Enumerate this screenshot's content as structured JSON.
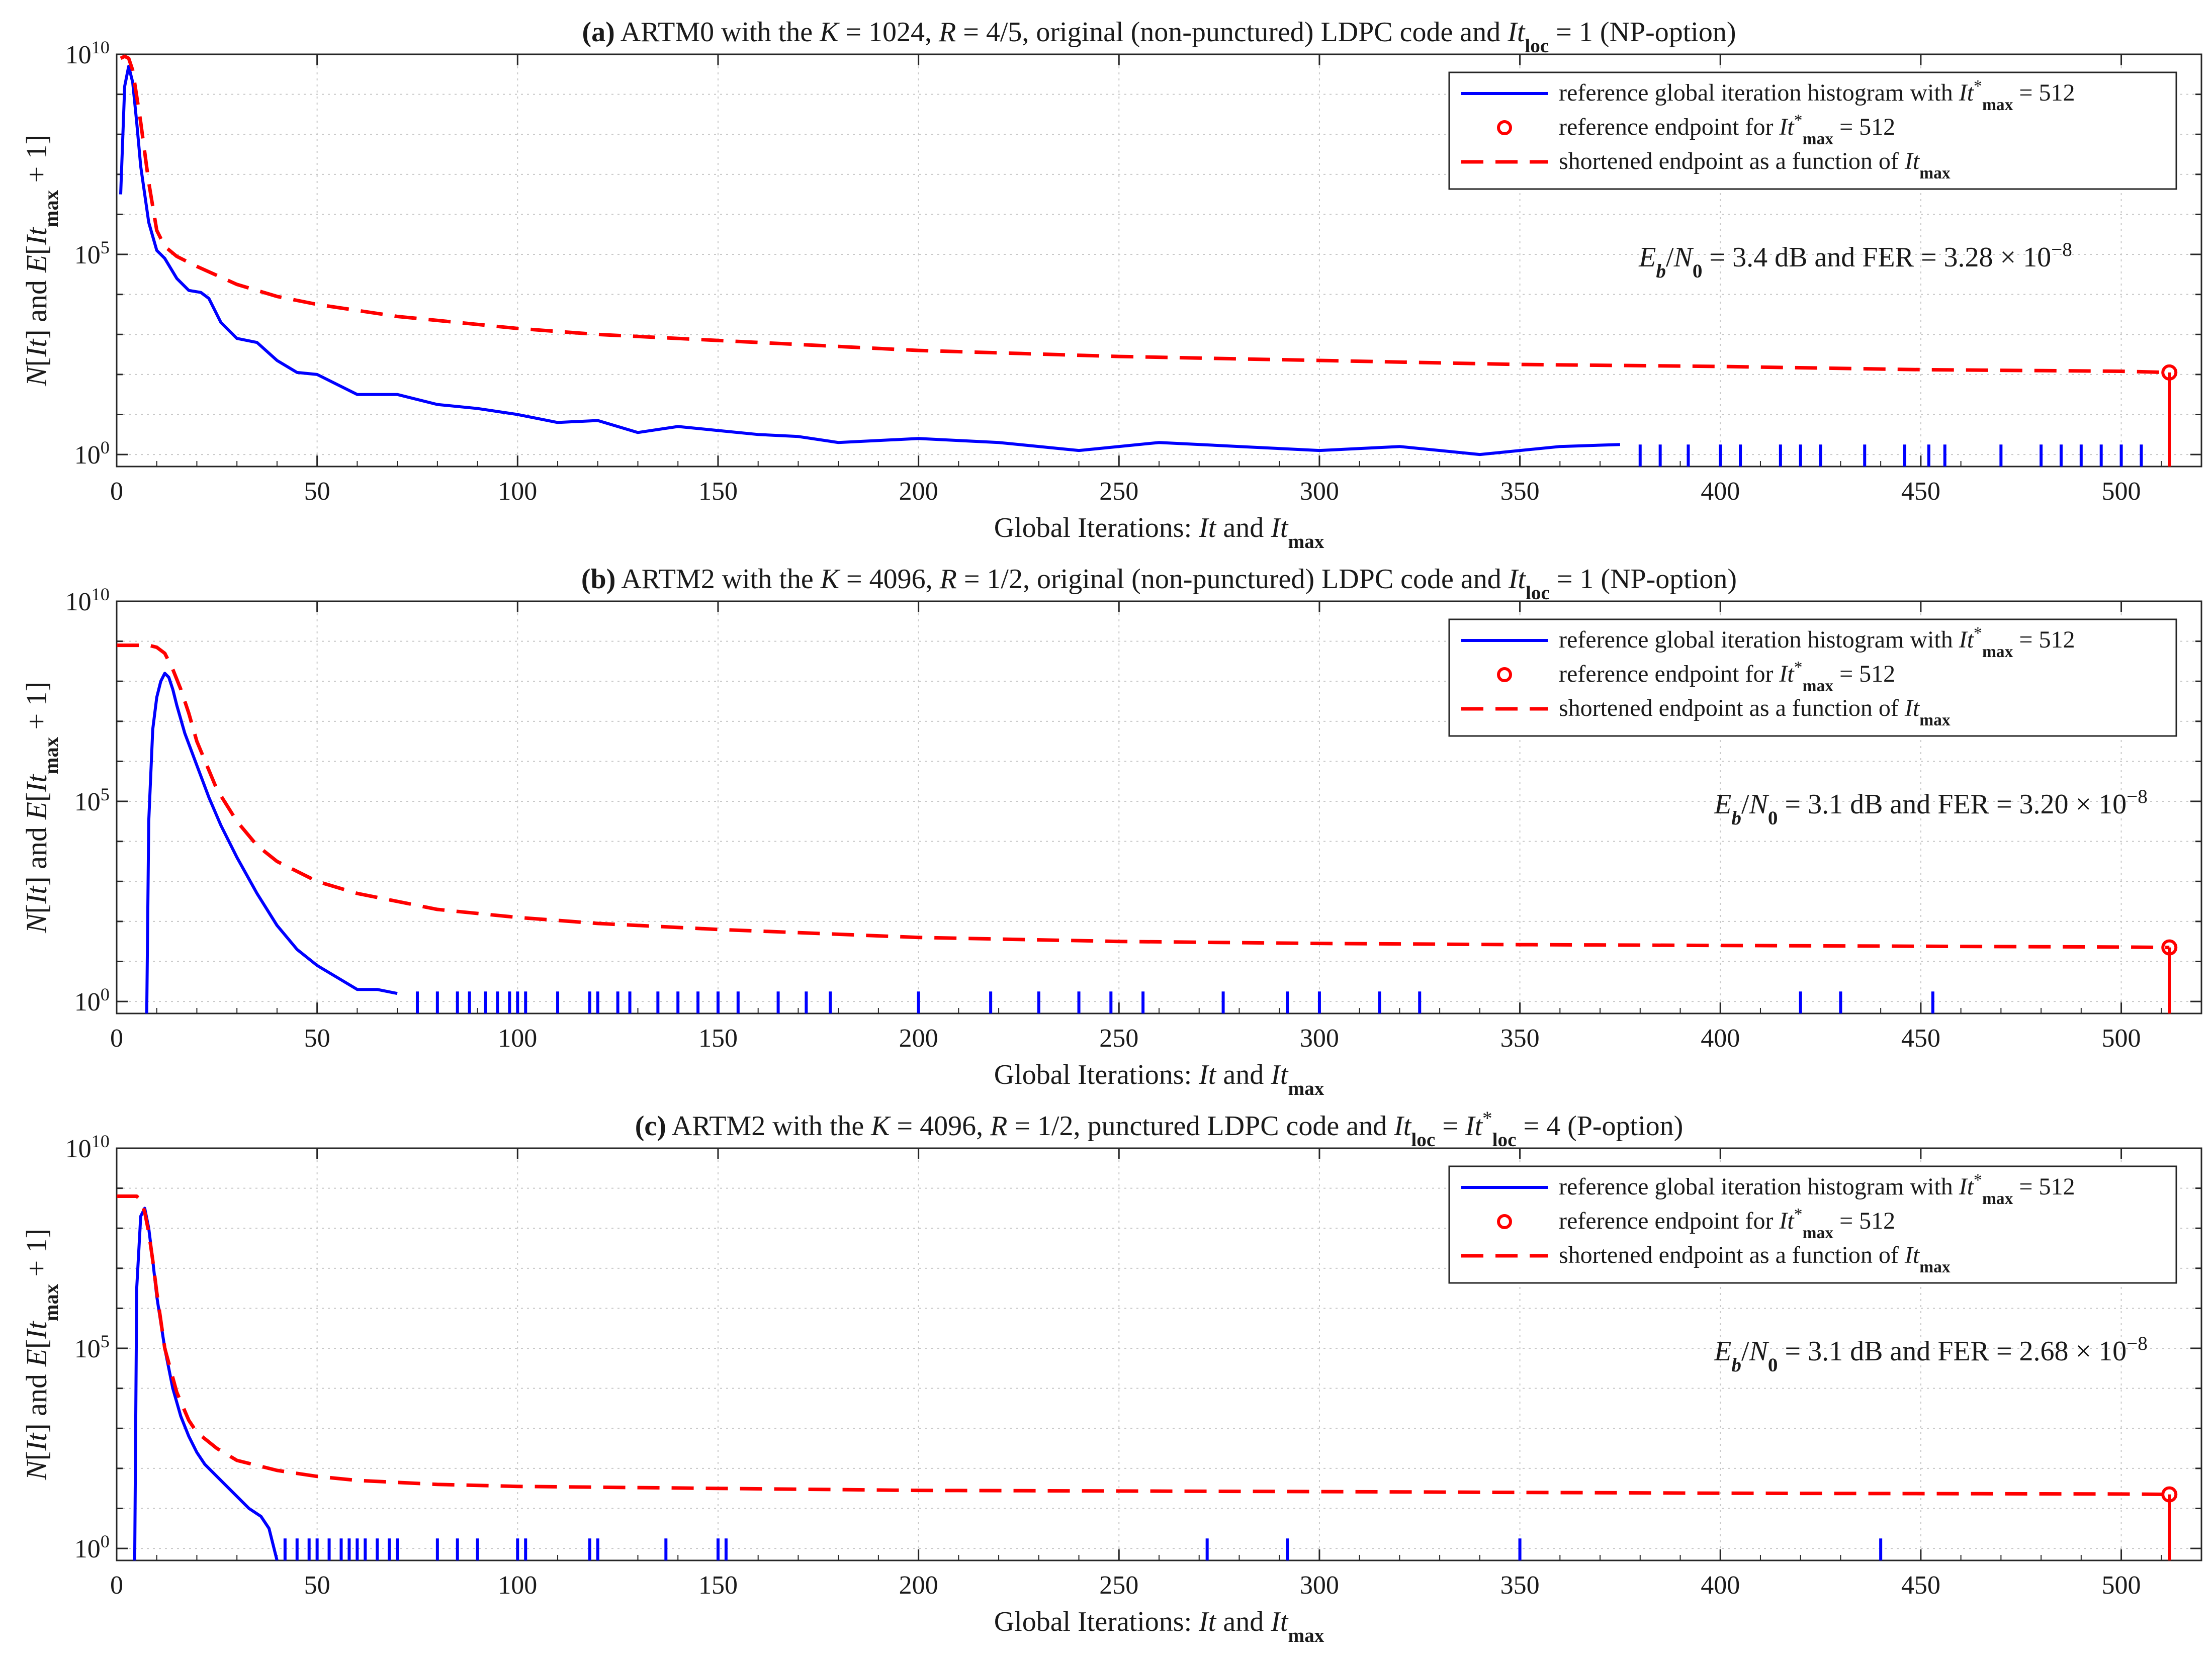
{
  "chart_data": [
    {
      "type": "line",
      "title": "(a) ARTM0 with the K = 1024, R = 4/5, original (non-punctured) LDPC code and Itloc = 1 (NP-option)",
      "xlabel": "Global Iterations: It and Itmax",
      "ylabel": "N[It] and E[Itmax + 1]",
      "xlim": [
        0,
        520
      ],
      "ylim_log10": [
        -0.3,
        10
      ],
      "yscale": "log",
      "x_ticks": [
        "0",
        "50",
        "100",
        "150",
        "200",
        "250",
        "300",
        "350",
        "400",
        "450",
        "500"
      ],
      "y_ticks": [
        "10^0",
        "10^5",
        "10^10"
      ],
      "grid": true,
      "legend_position": "top-right",
      "legend": [
        "reference global iteration histogram with It*max = 512",
        "reference endpoint for It*max = 512",
        "shortened endpoint as a function of Itmax"
      ],
      "annotation": "Eb/N0 = 3.4 dB and FER = 3.28 × 10^-8",
      "series": [
        {
          "name": "reference global iteration histogram with It*max = 512",
          "color": "#0000ff",
          "style": "solid",
          "log10_values": {
            "x": [
              1,
              2,
              3,
              4,
              5,
              6,
              8,
              10,
              12,
              15,
              18,
              21,
              23,
              26,
              30,
              35,
              40,
              45,
              50,
              55,
              60,
              70,
              80,
              90,
              100,
              110,
              120,
              130,
              140,
              150,
              160,
              170,
              180,
              200,
              220,
              240,
              260,
              280,
              300,
              320,
              340,
              360,
              375
            ],
            "y": [
              6.5,
              9.2,
              9.7,
              9.3,
              8.3,
              7.2,
              5.8,
              5.1,
              4.9,
              4.4,
              4.1,
              4.05,
              3.9,
              3.3,
              2.9,
              2.8,
              2.35,
              2.05,
              2.0,
              1.75,
              1.5,
              1.5,
              1.25,
              1.15,
              1.0,
              0.8,
              0.85,
              0.55,
              0.7,
              0.6,
              0.5,
              0.45,
              0.3,
              0.4,
              0.3,
              0.1,
              0.3,
              0.2,
              0.1,
              0.2,
              0.0,
              0.2,
              0.25
            ]
          },
          "sparse_spikes_x": [
            380,
            385,
            392,
            400,
            405,
            415,
            420,
            425,
            436,
            446,
            452,
            456,
            470,
            480,
            485,
            490,
            495,
            500,
            505
          ]
        },
        {
          "name": "reference endpoint for It*max = 512",
          "color": "#ff0000",
          "style": "marker",
          "x": 512,
          "log10_value": 2.05
        },
        {
          "name": "shortened endpoint as a function of Itmax",
          "color": "#ff0000",
          "style": "dashed",
          "log10_values": {
            "x": [
              1,
              2,
              3,
              4,
              6,
              8,
              10,
              12,
              15,
              20,
              30,
              40,
              50,
              60,
              70,
              80,
              100,
              120,
              150,
              200,
              250,
              300,
              350,
              400,
              450,
              500,
              512
            ],
            "y": [
              9.9,
              9.95,
              9.9,
              9.6,
              8.3,
              6.8,
              5.6,
              5.2,
              4.95,
              4.7,
              4.25,
              3.95,
              3.75,
              3.6,
              3.45,
              3.35,
              3.15,
              3.0,
              2.85,
              2.6,
              2.45,
              2.35,
              2.25,
              2.2,
              2.12,
              2.08,
              2.05
            ]
          }
        }
      ]
    },
    {
      "type": "line",
      "title": "(b) ARTM2 with the K = 4096, R = 1/2, original (non-punctured) LDPC code and Itloc = 1 (NP-option)",
      "xlabel": "Global Iterations: It and Itmax",
      "ylabel": "N[It] and E[Itmax + 1]",
      "xlim": [
        0,
        520
      ],
      "ylim_log10": [
        -0.3,
        10
      ],
      "yscale": "log",
      "x_ticks": [
        "0",
        "50",
        "100",
        "150",
        "200",
        "250",
        "300",
        "350",
        "400",
        "450",
        "500"
      ],
      "y_ticks": [
        "10^0",
        "10^5",
        "10^10"
      ],
      "grid": true,
      "legend_position": "top-right",
      "legend": [
        "reference global iteration histogram with It*max = 512",
        "reference endpoint for It*max = 512",
        "shortened endpoint as a function of Itmax"
      ],
      "annotation": "Eb/N0 = 3.1 dB and FER = 3.20 × 10^-8",
      "series": [
        {
          "name": "reference global iteration histogram with It*max = 512",
          "color": "#0000ff",
          "style": "solid",
          "log10_values": {
            "x": [
              7.5,
              8,
              9,
              10,
              11,
              12,
              13,
              14,
              15,
              17,
              20,
              23,
              26,
              30,
              35,
              40,
              45,
              50,
              55,
              60,
              65,
              70
            ],
            "y": [
              -0.3,
              4.5,
              6.8,
              7.6,
              8.0,
              8.2,
              8.1,
              7.8,
              7.4,
              6.7,
              5.9,
              5.1,
              4.4,
              3.6,
              2.7,
              1.9,
              1.3,
              0.9,
              0.6,
              0.3,
              0.3,
              0.2
            ]
          },
          "sparse_spikes_x": [
            75,
            80,
            85,
            88,
            92,
            95,
            98,
            100,
            102,
            110,
            118,
            120,
            125,
            128,
            135,
            140,
            145,
            150,
            155,
            165,
            172,
            178,
            200,
            218,
            230,
            240,
            248,
            256,
            276,
            292,
            300,
            315,
            325,
            420,
            430,
            453
          ]
        },
        {
          "name": "reference endpoint for It*max = 512",
          "color": "#ff0000",
          "style": "marker",
          "x": 512,
          "log10_value": 1.35
        },
        {
          "name": "shortened endpoint as a function of Itmax",
          "color": "#ff0000",
          "style": "dashed",
          "log10_values": {
            "x": [
              0,
              5,
              8,
              10,
              12,
              14,
              16,
              18,
              20,
              25,
              30,
              35,
              40,
              50,
              60,
              70,
              80,
              100,
              120,
              150,
              200,
              250,
              300,
              350,
              400,
              450,
              500,
              512
            ],
            "y": [
              8.9,
              8.9,
              8.9,
              8.85,
              8.7,
              8.3,
              7.8,
              7.2,
              6.5,
              5.3,
              4.5,
              3.9,
              3.5,
              3.0,
              2.7,
              2.5,
              2.3,
              2.1,
              1.95,
              1.8,
              1.6,
              1.5,
              1.45,
              1.42,
              1.4,
              1.38,
              1.36,
              1.35
            ]
          }
        }
      ]
    },
    {
      "type": "line",
      "title": "(c) ARTM2 with the K = 4096, R = 1/2, punctured LDPC code and Itloc = It*loc = 4 (P-option)",
      "xlabel": "Global Iterations: It and Itmax",
      "ylabel": "N[It] and E[Itmax + 1]",
      "xlim": [
        0,
        520
      ],
      "ylim_log10": [
        -0.3,
        10
      ],
      "yscale": "log",
      "x_ticks": [
        "0",
        "50",
        "100",
        "150",
        "200",
        "250",
        "300",
        "350",
        "400",
        "450",
        "500"
      ],
      "y_ticks": [
        "10^0",
        "10^5",
        "10^10"
      ],
      "grid": true,
      "legend_position": "top-right",
      "legend": [
        "reference global iteration histogram with It*max = 512",
        "reference endpoint for It*max = 512",
        "shortened endpoint as a function of Itmax"
      ],
      "annotation": "Eb/N0 = 3.1 dB and FER = 2.68 × 10^-8",
      "series": [
        {
          "name": "reference global iteration histogram with It*max = 512",
          "color": "#0000ff",
          "style": "solid",
          "log10_values": {
            "x": [
              4.5,
              5,
              6,
              7,
              8,
              9,
              10,
              12,
              14,
              16,
              18,
              20,
              22,
              25,
              28,
              30,
              33,
              36,
              38,
              40
            ],
            "y": [
              -0.3,
              6.5,
              8.3,
              8.5,
              8.0,
              7.2,
              6.3,
              5.0,
              4.0,
              3.3,
              2.8,
              2.4,
              2.1,
              1.8,
              1.5,
              1.3,
              1.0,
              0.8,
              0.5,
              -0.3
            ]
          },
          "sparse_spikes_x": [
            42,
            45,
            48,
            50,
            53,
            56,
            58,
            60,
            62,
            65,
            68,
            70,
            80,
            85,
            90,
            100,
            102,
            118,
            120,
            137,
            150,
            152,
            272,
            292,
            350,
            440,
            512
          ]
        },
        {
          "name": "reference endpoint for It*max = 512",
          "color": "#ff0000",
          "style": "marker",
          "x": 512,
          "log10_value": 1.35
        },
        {
          "name": "shortened endpoint as a function of Itmax",
          "color": "#ff0000",
          "style": "dashed",
          "log10_values": {
            "x": [
              0,
              3,
              5,
              6,
              7,
              8,
              9,
              10,
              12,
              15,
              18,
              20,
              25,
              30,
              40,
              50,
              60,
              80,
              100,
              150,
              200,
              300,
              400,
              500,
              512
            ],
            "y": [
              8.8,
              8.8,
              8.8,
              8.7,
              8.4,
              7.9,
              7.2,
              6.4,
              5.0,
              3.9,
              3.2,
              2.9,
              2.5,
              2.2,
              1.95,
              1.8,
              1.7,
              1.6,
              1.55,
              1.5,
              1.45,
              1.42,
              1.38,
              1.36,
              1.35
            ]
          }
        }
      ]
    }
  ]
}
